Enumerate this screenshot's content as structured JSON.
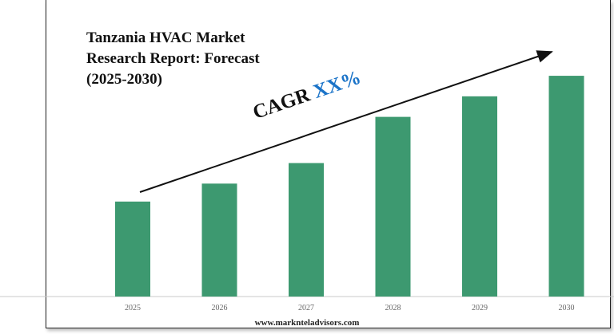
{
  "title_lines": [
    "Tanzania HVAC Market",
    "Research Report: Forecast",
    "(2025-2030)"
  ],
  "cagr": {
    "label": "CAGR",
    "value": "XX%"
  },
  "footer": {
    "url": "www.marknteladvisors.com"
  },
  "colors": {
    "bar": "#3d9970",
    "arrow": "#111111",
    "cagr_value": "#1a73c8"
  },
  "chart_data": {
    "type": "bar",
    "title": "Tanzania HVAC Market Research Report: Forecast (2025-2030)",
    "categories": [
      "2025",
      "2026",
      "2027",
      "2028",
      "2029",
      "2030"
    ],
    "values": [
      37,
      44,
      52,
      70,
      78,
      86
    ],
    "ylim": [
      0,
      100
    ],
    "grid": false,
    "legend": "none",
    "annotation": "CAGR XX%"
  }
}
